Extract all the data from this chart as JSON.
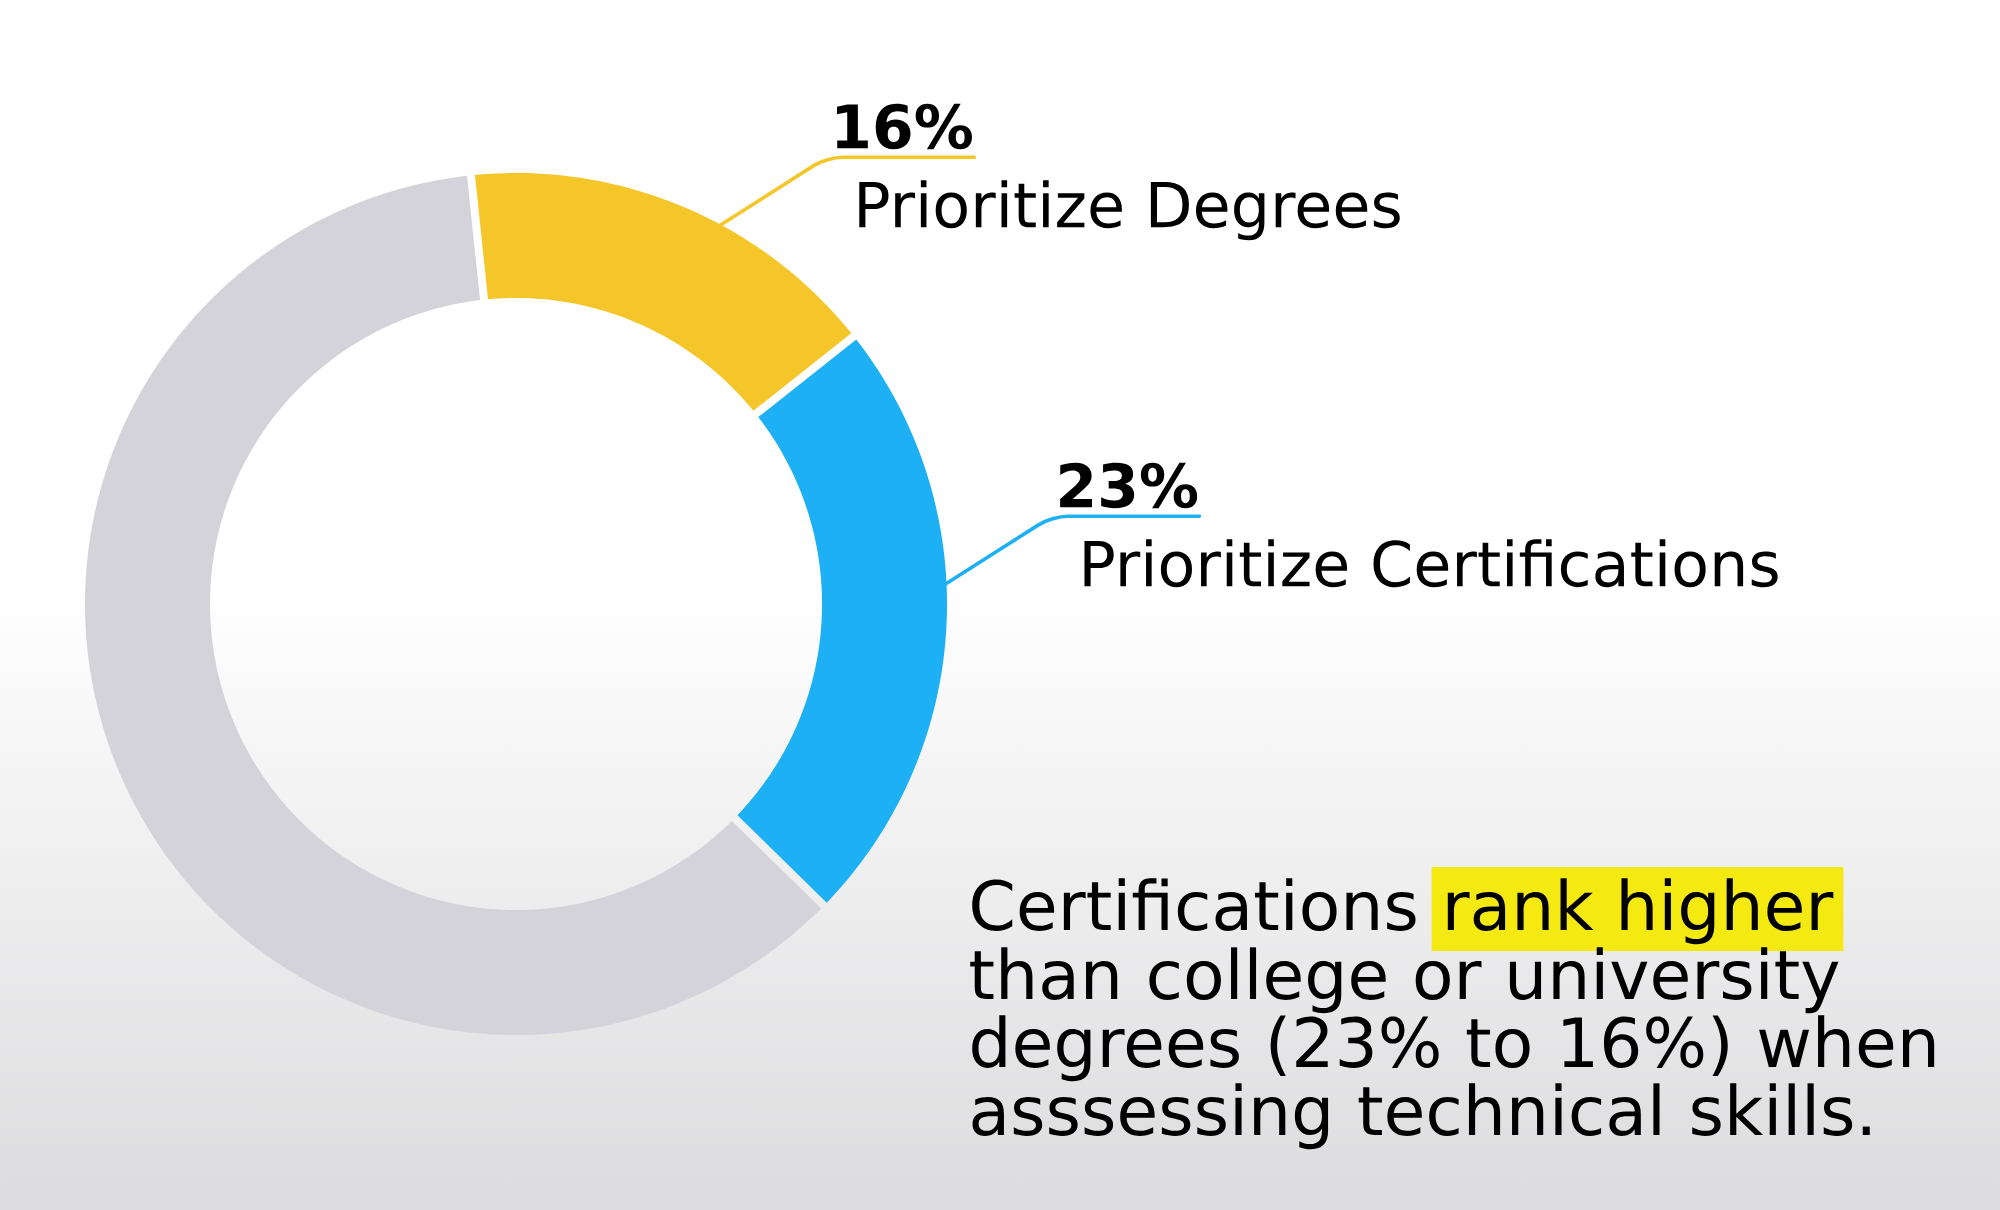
{
  "chart_data": {
    "type": "donut",
    "categories": [
      "Prioritize Degrees",
      "Prioritize Certifications",
      null
    ],
    "values": [
      16,
      23,
      61
    ],
    "colors": [
      "#f5c62a",
      "#1eb0f4",
      "#d4d3da"
    ],
    "value_labels": [
      "16%",
      "23%",
      null
    ],
    "annotations": [
      "Certifications",
      "rank higher",
      "than college or university degrees (23% to 16%) when asssessing technical skills."
    ]
  }
}
